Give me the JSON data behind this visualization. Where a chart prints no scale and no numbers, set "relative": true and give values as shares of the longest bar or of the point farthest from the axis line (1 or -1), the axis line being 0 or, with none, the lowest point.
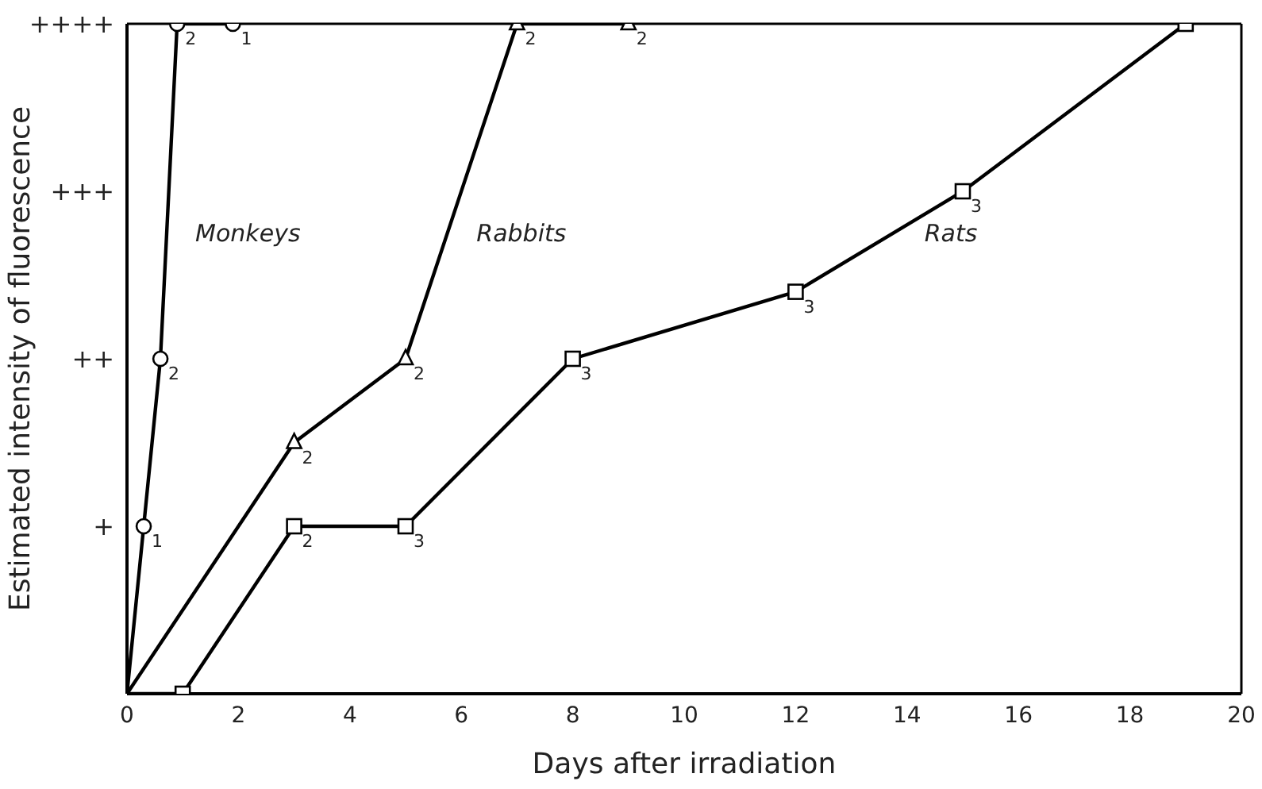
{
  "chart_data": {
    "type": "line",
    "relative": true,
    "xlabel": "Days after irradiation",
    "ylabel": "Estimated intensity of fluorescence",
    "xlim": [
      0,
      20
    ],
    "xticks": [
      0,
      2,
      4,
      6,
      8,
      10,
      12,
      14,
      16,
      18,
      20
    ],
    "y_categories": [
      "++++",
      "+++",
      "++",
      "+",
      null
    ],
    "line_style": "solid",
    "series": [
      {
        "color": "#000000",
        "marker": "circle",
        "x": [
          0,
          0.3,
          0.6,
          0.9,
          1.9
        ],
        "values": [
          0,
          0.25,
          0.5,
          1,
          1
        ]
      },
      {
        "color": "#000000",
        "marker": "triangle",
        "x": [
          0,
          3,
          5,
          7,
          9
        ],
        "values": [
          0,
          0.375,
          0.5,
          1,
          1
        ]
      },
      {
        "color": "#000000",
        "marker": "square",
        "x": [
          0,
          1,
          3,
          5,
          8,
          12,
          15,
          19
        ],
        "values": [
          0,
          0,
          0.25,
          0.25,
          0.5,
          0.6,
          0.75,
          1
        ]
      }
    ],
    "annotations": [
      "Monkeys",
      "Rabbits",
      "Rats",
      {
        "text": "1",
        "x": 0.3,
        "y": 0.25
      },
      {
        "text": "2",
        "x": 0.6,
        "y": 0.5
      },
      {
        "text": "2",
        "x": 0.9,
        "y": 1
      },
      {
        "text": "1",
        "x": 1.9,
        "y": 1
      },
      {
        "text": "2",
        "x": 3,
        "y": 0.375
      },
      {
        "text": "2",
        "x": 5,
        "y": 0.5
      },
      {
        "text": "2",
        "x": 7,
        "y": 1
      },
      {
        "text": "2",
        "x": 9,
        "y": 1
      },
      {
        "text": "2",
        "x": 3,
        "y": 0.25
      },
      {
        "text": "3",
        "x": 5,
        "y": 0.25
      },
      {
        "text": "3",
        "x": 8,
        "y": 0.5
      },
      {
        "text": "3",
        "x": 12,
        "y": 0.6
      },
      {
        "text": "3",
        "x": 15,
        "y": 0.75
      }
    ]
  }
}
